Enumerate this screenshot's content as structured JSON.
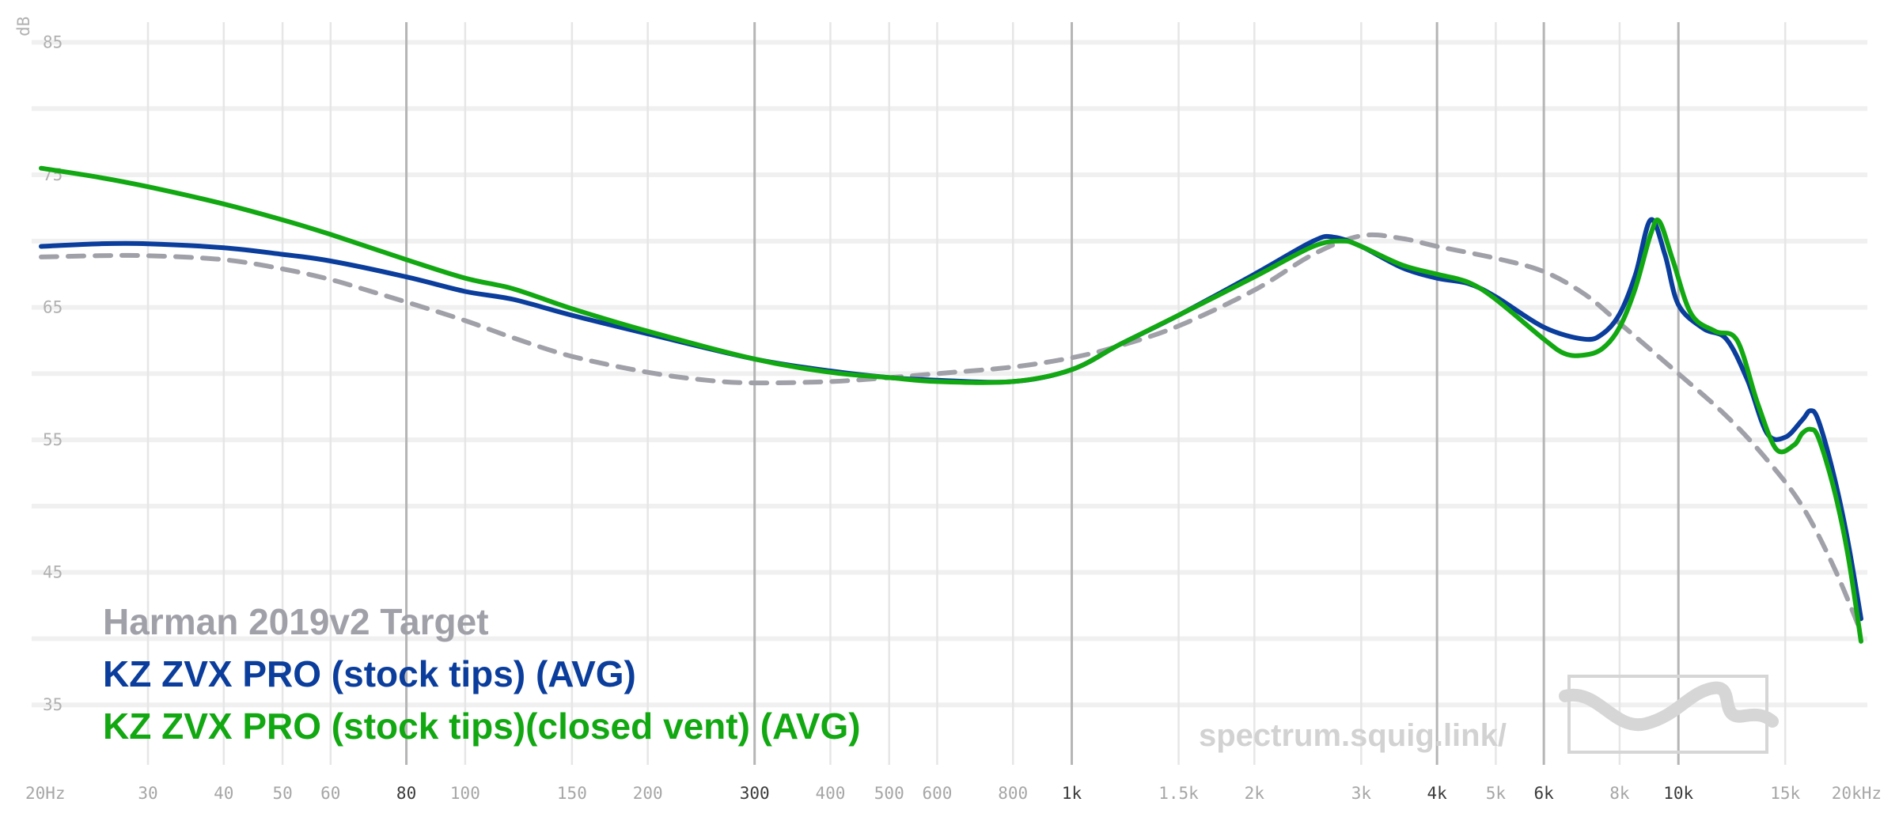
{
  "chart_data": {
    "type": "line",
    "ylabel": "dB",
    "x_scale": "log",
    "xlim": [
      20,
      20000
    ],
    "ylim": [
      30,
      87
    ],
    "grid": true,
    "legend_position": "bottom-left",
    "y_ticks": [
      35,
      45,
      55,
      65,
      75,
      85
    ],
    "x_ticks": [
      {
        "value": 20,
        "label": "20Hz",
        "major": false
      },
      {
        "value": 30,
        "label": "30",
        "major": false
      },
      {
        "value": 40,
        "label": "40",
        "major": false
      },
      {
        "value": 50,
        "label": "50",
        "major": false
      },
      {
        "value": 60,
        "label": "60",
        "major": false
      },
      {
        "value": 80,
        "label": "80",
        "major": true
      },
      {
        "value": 100,
        "label": "100",
        "major": false
      },
      {
        "value": 150,
        "label": "150",
        "major": false
      },
      {
        "value": 200,
        "label": "200",
        "major": false
      },
      {
        "value": 300,
        "label": "300",
        "major": true
      },
      {
        "value": 400,
        "label": "400",
        "major": false
      },
      {
        "value": 500,
        "label": "500",
        "major": false
      },
      {
        "value": 600,
        "label": "600",
        "major": false
      },
      {
        "value": 800,
        "label": "800",
        "major": false
      },
      {
        "value": 1000,
        "label": "1k",
        "major": true
      },
      {
        "value": 1500,
        "label": "1.5k",
        "major": false
      },
      {
        "value": 2000,
        "label": "2k",
        "major": false
      },
      {
        "value": 3000,
        "label": "3k",
        "major": false
      },
      {
        "value": 4000,
        "label": "4k",
        "major": true
      },
      {
        "value": 5000,
        "label": "5k",
        "major": false
      },
      {
        "value": 6000,
        "label": "6k",
        "major": true
      },
      {
        "value": 8000,
        "label": "8k",
        "major": false
      },
      {
        "value": 10000,
        "label": "10k",
        "major": true
      },
      {
        "value": 15000,
        "label": "15k",
        "major": false
      },
      {
        "value": 20000,
        "label": "20kHz",
        "major": false
      }
    ],
    "series": [
      {
        "name": "Harman 2019v2 Target",
        "color": "#a0a0a8",
        "dashed": true,
        "points": [
          [
            20,
            68.8
          ],
          [
            25,
            68.9
          ],
          [
            30,
            68.9
          ],
          [
            40,
            68.6
          ],
          [
            50,
            67.9
          ],
          [
            60,
            67.1
          ],
          [
            70,
            66.2
          ],
          [
            80,
            65.4
          ],
          [
            100,
            64.0
          ],
          [
            120,
            62.7
          ],
          [
            150,
            61.3
          ],
          [
            200,
            60.1
          ],
          [
            250,
            59.5
          ],
          [
            300,
            59.3
          ],
          [
            400,
            59.4
          ],
          [
            500,
            59.7
          ],
          [
            600,
            60.0
          ],
          [
            800,
            60.5
          ],
          [
            1000,
            61.2
          ],
          [
            1200,
            62.1
          ],
          [
            1500,
            63.6
          ],
          [
            2000,
            66.3
          ],
          [
            2500,
            69.0
          ],
          [
            3000,
            70.4
          ],
          [
            3500,
            70.2
          ],
          [
            4000,
            69.6
          ],
          [
            5000,
            68.7
          ],
          [
            6000,
            67.7
          ],
          [
            7000,
            66.0
          ],
          [
            8000,
            63.8
          ],
          [
            10000,
            60.0
          ],
          [
            12000,
            56.8
          ],
          [
            14000,
            53.5
          ],
          [
            16000,
            50.0
          ],
          [
            18000,
            45.5
          ],
          [
            20000,
            40.5
          ]
        ]
      },
      {
        "name": "KZ ZVX PRO (stock tips) (AVG)",
        "color": "#0a3d9c",
        "dashed": false,
        "points": [
          [
            20,
            69.6
          ],
          [
            25,
            69.8
          ],
          [
            30,
            69.8
          ],
          [
            40,
            69.5
          ],
          [
            50,
            69.0
          ],
          [
            60,
            68.5
          ],
          [
            80,
            67.3
          ],
          [
            100,
            66.2
          ],
          [
            120,
            65.6
          ],
          [
            150,
            64.4
          ],
          [
            200,
            63.0
          ],
          [
            300,
            61.1
          ],
          [
            400,
            60.2
          ],
          [
            500,
            59.7
          ],
          [
            600,
            59.5
          ],
          [
            800,
            59.4
          ],
          [
            1000,
            60.3
          ],
          [
            1200,
            62.2
          ],
          [
            1500,
            64.4
          ],
          [
            2000,
            67.5
          ],
          [
            2500,
            70.0
          ],
          [
            2700,
            70.3
          ],
          [
            3000,
            69.6
          ],
          [
            3500,
            68.0
          ],
          [
            4000,
            67.2
          ],
          [
            4500,
            66.8
          ],
          [
            5000,
            65.8
          ],
          [
            6000,
            63.5
          ],
          [
            7000,
            62.6
          ],
          [
            7500,
            63.0
          ],
          [
            8000,
            64.5
          ],
          [
            8500,
            67.5
          ],
          [
            9000,
            71.6
          ],
          [
            9500,
            69.0
          ],
          [
            10000,
            65.2
          ],
          [
            11000,
            63.4
          ],
          [
            12000,
            62.6
          ],
          [
            13000,
            59.5
          ],
          [
            14000,
            55.5
          ],
          [
            15000,
            55.2
          ],
          [
            16000,
            56.5
          ],
          [
            16500,
            57.2
          ],
          [
            17000,
            56.5
          ],
          [
            18000,
            52.5
          ],
          [
            19000,
            47.5
          ],
          [
            20000,
            41.5
          ]
        ]
      },
      {
        "name": "KZ ZVX PRO (stock tips)(closed vent) (AVG)",
        "color": "#12a812",
        "dashed": false,
        "points": [
          [
            20,
            75.5
          ],
          [
            25,
            74.8
          ],
          [
            30,
            74.1
          ],
          [
            40,
            72.8
          ],
          [
            50,
            71.6
          ],
          [
            60,
            70.5
          ],
          [
            80,
            68.6
          ],
          [
            100,
            67.2
          ],
          [
            120,
            66.4
          ],
          [
            150,
            64.9
          ],
          [
            200,
            63.2
          ],
          [
            300,
            61.1
          ],
          [
            400,
            60.1
          ],
          [
            500,
            59.7
          ],
          [
            600,
            59.4
          ],
          [
            800,
            59.4
          ],
          [
            1000,
            60.3
          ],
          [
            1200,
            62.2
          ],
          [
            1500,
            64.4
          ],
          [
            2000,
            67.3
          ],
          [
            2500,
            69.6
          ],
          [
            2800,
            70.0
          ],
          [
            3000,
            69.6
          ],
          [
            3500,
            68.2
          ],
          [
            4000,
            67.5
          ],
          [
            4500,
            66.9
          ],
          [
            5000,
            65.6
          ],
          [
            6000,
            62.6
          ],
          [
            6500,
            61.5
          ],
          [
            7000,
            61.4
          ],
          [
            7500,
            61.9
          ],
          [
            8000,
            63.5
          ],
          [
            8500,
            66.5
          ],
          [
            9000,
            70.5
          ],
          [
            9300,
            71.5
          ],
          [
            9800,
            68.5
          ],
          [
            10500,
            64.5
          ],
          [
            11500,
            63.2
          ],
          [
            12500,
            62.5
          ],
          [
            13500,
            57.8
          ],
          [
            14500,
            54.3
          ],
          [
            15500,
            54.6
          ],
          [
            16000,
            55.5
          ],
          [
            16500,
            55.8
          ],
          [
            17000,
            55.2
          ],
          [
            18000,
            51.5
          ],
          [
            19000,
            46.5
          ],
          [
            20000,
            39.8
          ]
        ]
      }
    ],
    "watermark": "spectrum.squig.link/"
  }
}
